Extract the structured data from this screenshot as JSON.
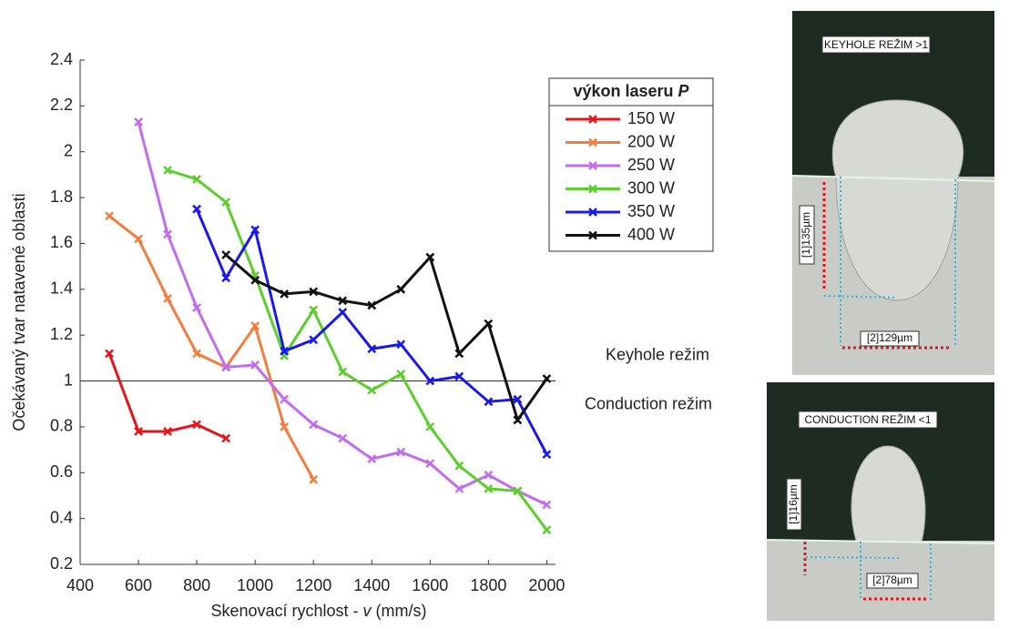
{
  "chart_data": {
    "type": "line",
    "ylabel": "Očekávaný tvar natavené oblasti",
    "xlabel": "Skenovací rychlost -",
    "xlabel_symbol": "v",
    "xlabel_unit": "(mm/s)",
    "legend_title": "výkon laseru",
    "legend_title_symbol": "P",
    "legend_position": "upper right",
    "xlim": [
      400,
      2030
    ],
    "xticks": [
      400,
      600,
      800,
      1000,
      1200,
      1400,
      1600,
      1800,
      2000
    ],
    "ylim": [
      0.2,
      2.4
    ],
    "yticks": [
      0.2,
      0.4,
      0.6,
      0.8,
      1,
      1.2,
      1.4,
      1.6,
      1.8,
      2,
      2.2,
      2.4
    ],
    "reference_line": 1,
    "annotations": [
      "Keyhole režim",
      "Conduction režim"
    ],
    "series": [
      {
        "name": "150 W",
        "color": "#e8141c",
        "x": [
          500,
          600,
          700,
          800,
          900
        ],
        "values": [
          1.12,
          0.78,
          0.78,
          0.81,
          0.75
        ]
      },
      {
        "name": "200 W",
        "color": "#f47c3c",
        "x": [
          500,
          600,
          700,
          800,
          900,
          1000,
          1100,
          1200
        ],
        "values": [
          1.72,
          1.62,
          1.36,
          1.12,
          1.06,
          1.24,
          0.8,
          0.57
        ]
      },
      {
        "name": "250 W",
        "color": "#c26cf0",
        "x": [
          600,
          700,
          800,
          900,
          1000,
          1100,
          1200,
          1300,
          1400,
          1500,
          1600,
          1700,
          1800,
          1900,
          2000
        ],
        "values": [
          2.13,
          1.64,
          1.32,
          1.06,
          1.07,
          0.92,
          0.81,
          0.75,
          0.66,
          0.69,
          0.64,
          0.53,
          0.59,
          0.52,
          0.46
        ]
      },
      {
        "name": "300 W",
        "color": "#5cce2c",
        "x": [
          700,
          800,
          900,
          1000,
          1100,
          1200,
          1300,
          1400,
          1500,
          1600,
          1700,
          1800,
          1900,
          2000
        ],
        "values": [
          1.92,
          1.88,
          1.78,
          1.46,
          1.11,
          1.31,
          1.04,
          0.96,
          1.03,
          0.8,
          0.63,
          0.53,
          0.52,
          0.35
        ]
      },
      {
        "name": "350 W",
        "color": "#1818f0",
        "x": [
          800,
          900,
          1000,
          1100,
          1200,
          1300,
          1400,
          1500,
          1600,
          1700,
          1800,
          1900,
          2000
        ],
        "values": [
          1.75,
          1.45,
          1.66,
          1.13,
          1.18,
          1.3,
          1.14,
          1.16,
          1.0,
          1.02,
          0.91,
          0.92,
          0.68
        ]
      },
      {
        "name": "400 W",
        "color": "#111111",
        "x": [
          900,
          1000,
          1100,
          1200,
          1300,
          1400,
          1500,
          1600,
          1700,
          1800,
          1900,
          2000
        ],
        "values": [
          1.55,
          1.44,
          1.38,
          1.39,
          1.35,
          1.33,
          1.4,
          1.54,
          1.12,
          1.25,
          0.83,
          1.01
        ]
      }
    ]
  },
  "panels": [
    {
      "title": "KEYHOLE REŽIM >1",
      "depth_label": "[1]135µm",
      "width_label": "[2]129µm"
    },
    {
      "title": "CONDUCTION REŽIM <1",
      "depth_label": "[1]16µm",
      "width_label": "[2]78µm"
    }
  ]
}
